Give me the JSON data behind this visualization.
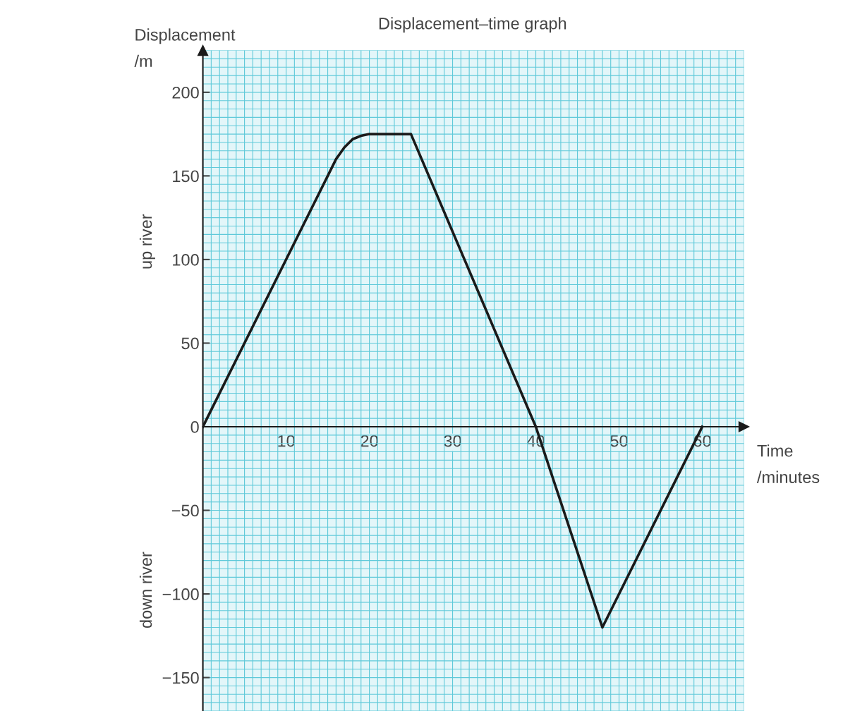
{
  "chart_data": {
    "type": "line",
    "title": "Displacement–time graph",
    "xlabel": "Time\n/minutes",
    "ylabel": "Displacement\n/m",
    "annotations": [
      "up river",
      "down river"
    ],
    "series": [
      {
        "color": "#1a1a1a",
        "x": [
          0,
          15,
          16,
          17,
          18,
          19,
          20,
          25,
          40,
          48,
          60
        ],
        "values": [
          0,
          150,
          160,
          167,
          172,
          174,
          175,
          175,
          0,
          -120,
          0
        ]
      }
    ],
    "xlim": [
      0,
      65
    ],
    "ylim": [
      -170,
      225
    ],
    "xticks": [
      10,
      20,
      30,
      40,
      50,
      60
    ],
    "yticks": [
      {
        "value": -150,
        "label": "−150"
      },
      {
        "value": -100,
        "label": "−100"
      },
      {
        "value": -50,
        "label": "−50"
      },
      0,
      50,
      100,
      150,
      200
    ],
    "grid": true,
    "marker": "none",
    "line_style": "solid"
  }
}
